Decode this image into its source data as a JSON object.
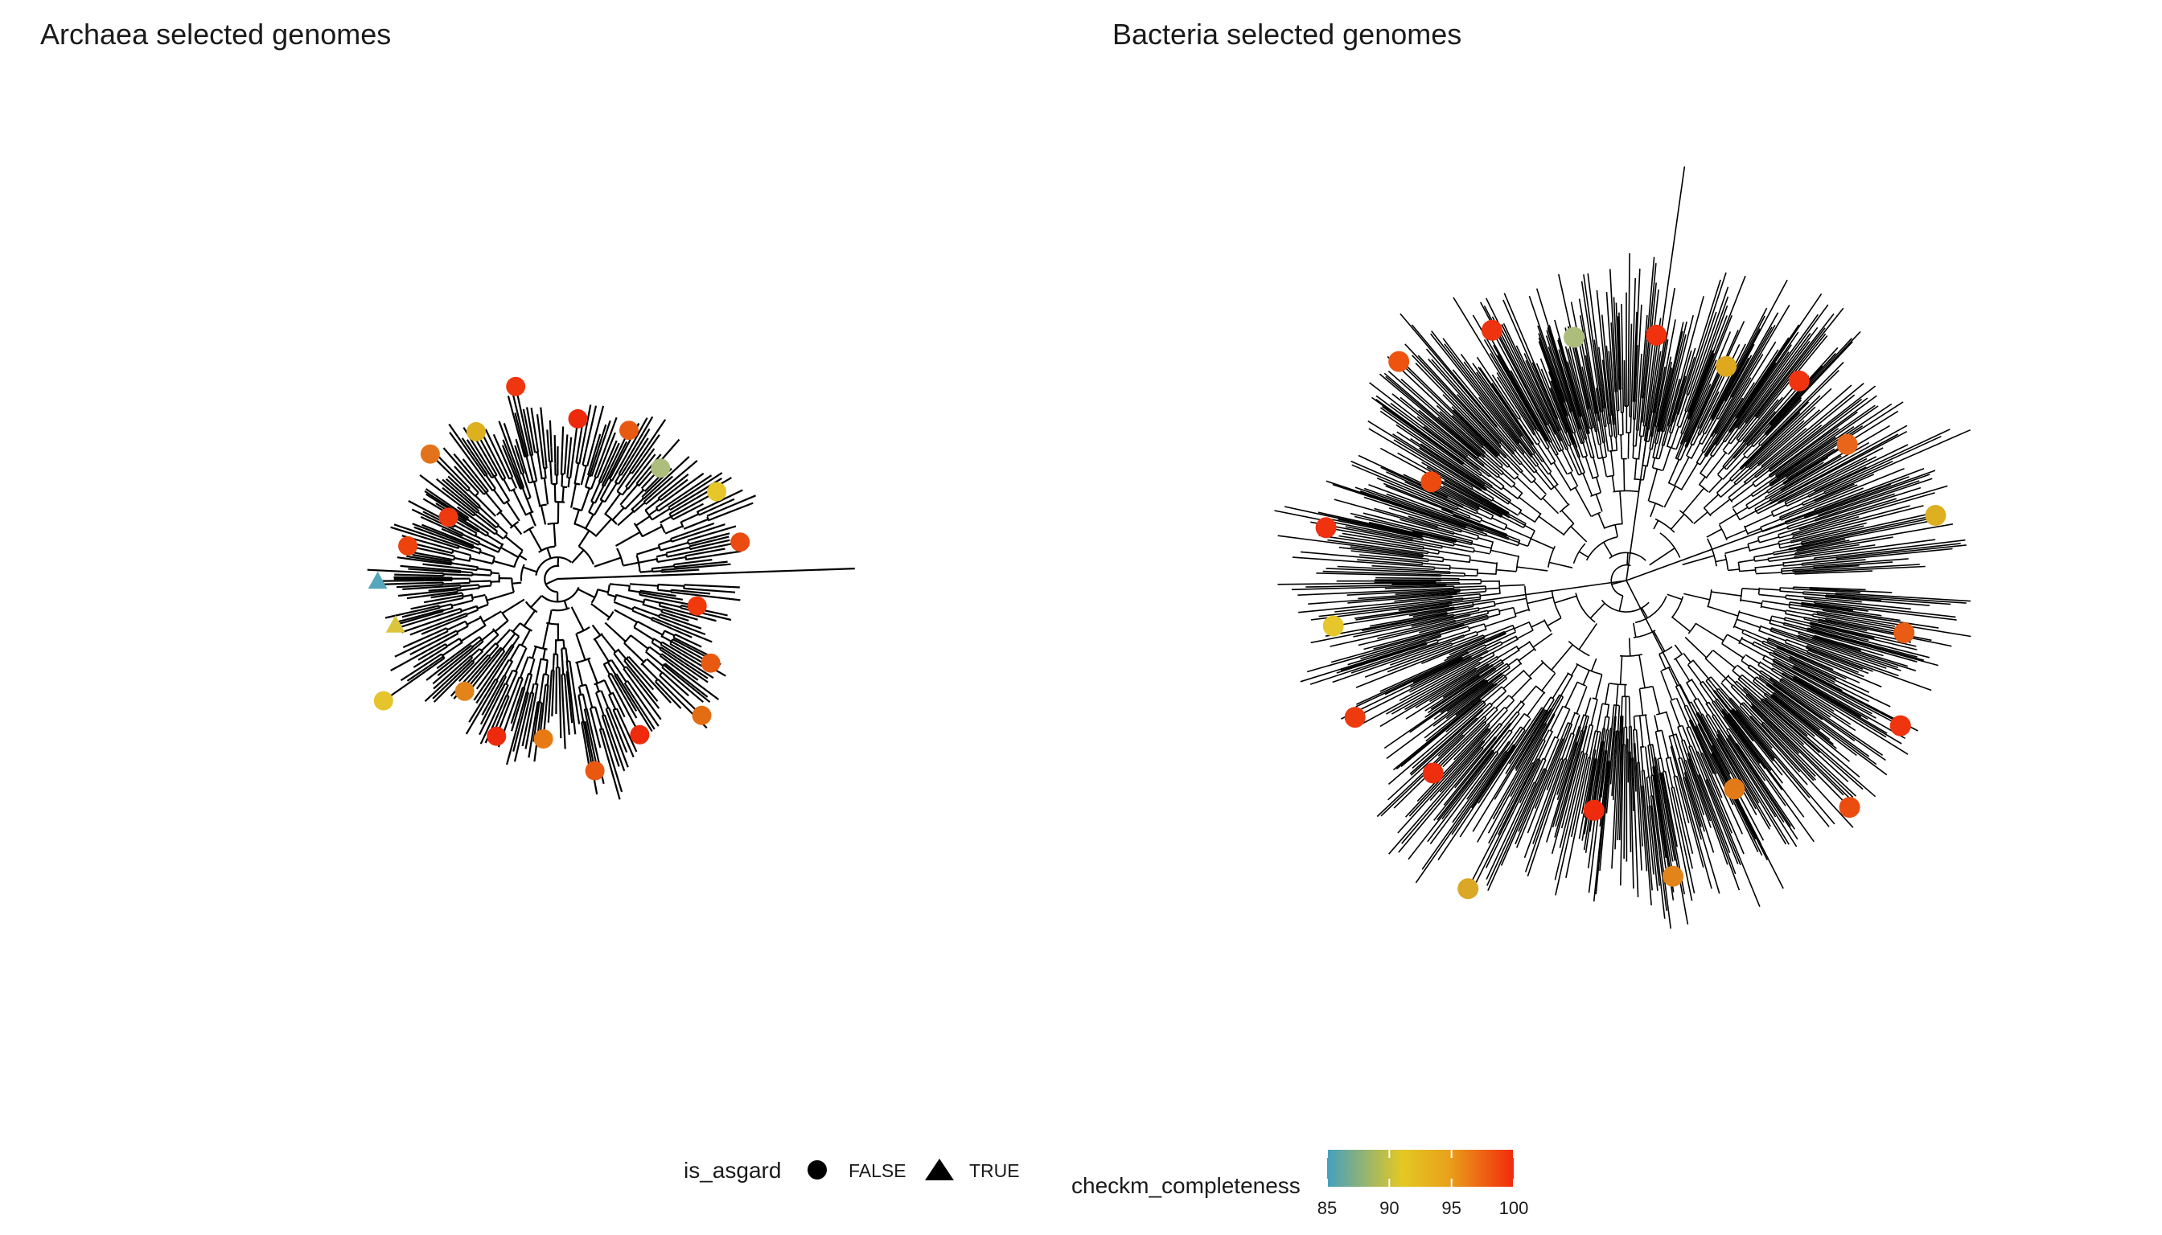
{
  "panels": [
    {
      "title": "Archaea selected genomes",
      "markers": [
        {
          "shape": "circle",
          "color": "#F13A0C"
        },
        {
          "shape": "circle",
          "color": "#E85A11"
        },
        {
          "shape": "circle",
          "color": "#E36D13"
        },
        {
          "shape": "circle",
          "color": "#F02A0C"
        },
        {
          "shape": "circle",
          "color": "#EA5810"
        },
        {
          "shape": "circle",
          "color": "#E87A16"
        },
        {
          "shape": "circle",
          "color": "#EE2A0D"
        },
        {
          "shape": "circle",
          "color": "#E2841A"
        },
        {
          "shape": "circle",
          "color": "#E5C52B"
        },
        {
          "shape": "triangle",
          "color": "#DCC53A"
        },
        {
          "shape": "triangle",
          "color": "#56A6BC"
        },
        {
          "shape": "circle",
          "color": "#EF430E"
        },
        {
          "shape": "circle",
          "color": "#EE3A0E"
        },
        {
          "shape": "circle",
          "color": "#E3731A"
        },
        {
          "shape": "circle",
          "color": "#DDB020"
        },
        {
          "shape": "circle",
          "color": "#F0360F"
        },
        {
          "shape": "circle",
          "color": "#EE2A0D"
        },
        {
          "shape": "circle",
          "color": "#E85A12"
        },
        {
          "shape": "circle",
          "color": "#ADBE7C"
        },
        {
          "shape": "circle",
          "color": "#E6C62A"
        },
        {
          "shape": "circle",
          "color": "#EB4A10"
        }
      ]
    },
    {
      "title": "Bacteria selected genomes",
      "markers": [
        {
          "shape": "circle",
          "color": "#E85C13"
        },
        {
          "shape": "circle",
          "color": "#F03410"
        },
        {
          "shape": "circle",
          "color": "#EB4D10"
        },
        {
          "shape": "circle",
          "color": "#E27A18"
        },
        {
          "shape": "circle",
          "color": "#E2841A"
        },
        {
          "shape": "circle",
          "color": "#EE2C0D"
        },
        {
          "shape": "circle",
          "color": "#DBA826"
        },
        {
          "shape": "circle",
          "color": "#EE2E0D"
        },
        {
          "shape": "circle",
          "color": "#ED3B0E"
        },
        {
          "shape": "circle",
          "color": "#E6C72B"
        },
        {
          "shape": "circle",
          "color": "#F0320F"
        },
        {
          "shape": "circle",
          "color": "#ED4A0F"
        },
        {
          "shape": "circle",
          "color": "#EE5410"
        },
        {
          "shape": "circle",
          "color": "#EE3310"
        },
        {
          "shape": "circle",
          "color": "#ADBE7C"
        },
        {
          "shape": "circle",
          "color": "#F0320F"
        },
        {
          "shape": "circle",
          "color": "#DEA81F"
        },
        {
          "shape": "circle",
          "color": "#F0340F"
        },
        {
          "shape": "circle",
          "color": "#E8651A"
        },
        {
          "shape": "circle",
          "color": "#DFAF22"
        }
      ]
    }
  ],
  "legend": {
    "shape": {
      "title": "is_asgard",
      "items": [
        {
          "label": "FALSE",
          "shape": "circle"
        },
        {
          "label": "TRUE",
          "shape": "triangle"
        }
      ]
    },
    "color": {
      "title": "checkm_completeness",
      "min": 85,
      "max": 100,
      "ticks": [
        "85",
        "90",
        "95",
        "100"
      ],
      "stops": [
        "#44A0BF",
        "#E3C824",
        "#E9A21B",
        "#F22A0C"
      ]
    }
  }
}
